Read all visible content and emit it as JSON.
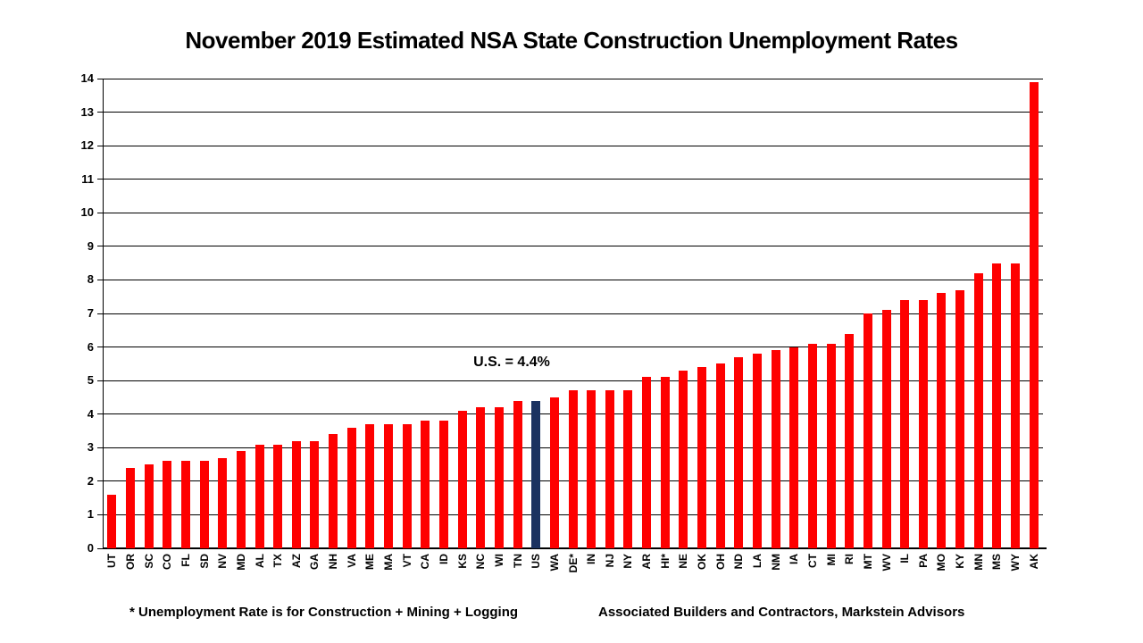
{
  "title": "November 2019 Estimated NSA State Construction Unemployment Rates",
  "annotation": "U.S. = 4.4%",
  "footnote_left": "* Unemployment Rate is for Construction + Mining + Logging",
  "footnote_right": "Associated Builders and Contractors, Markstein Advisors",
  "colors": {
    "bar": "#fe0000",
    "highlight_bar": "#1b3260",
    "grid": "#000000",
    "text": "#000000",
    "background": "#ffffff"
  },
  "chart_data": {
    "type": "bar",
    "title": "November 2019 Estimated NSA State Construction Unemployment Rates",
    "categories": [
      "UT",
      "OR",
      "SC",
      "CO",
      "FL",
      "SD",
      "NV",
      "MD",
      "AL",
      "TX",
      "AZ",
      "GA",
      "NH",
      "VA",
      "ME",
      "MA",
      "VT",
      "CA",
      "ID",
      "KS",
      "NC",
      "WI",
      "TN",
      "US",
      "WA",
      "DE*",
      "IN",
      "NJ",
      "NY",
      "AR",
      "HI*",
      "NE",
      "OK",
      "OH",
      "ND",
      "LA",
      "NM",
      "IA",
      "CT",
      "MI",
      "RI",
      "MT",
      "WV",
      "IL",
      "PA",
      "MO",
      "KY",
      "MN",
      "MS",
      "WY",
      "AK"
    ],
    "values": [
      1.6,
      2.4,
      2.5,
      2.6,
      2.6,
      2.6,
      2.7,
      2.9,
      3.1,
      3.1,
      3.2,
      3.2,
      3.4,
      3.6,
      3.7,
      3.7,
      3.7,
      3.8,
      3.8,
      4.1,
      4.2,
      4.2,
      4.4,
      4.4,
      4.5,
      4.7,
      4.7,
      4.7,
      4.7,
      5.1,
      5.1,
      5.3,
      5.4,
      5.5,
      5.7,
      5.8,
      5.9,
      6.0,
      6.1,
      6.1,
      6.4,
      7.0,
      7.1,
      7.4,
      7.4,
      7.6,
      7.7,
      8.2,
      8.5,
      8.5,
      13.9
    ],
    "highlight_category": "US",
    "xlabel": "",
    "ylabel": "",
    "ylim": [
      0,
      14
    ],
    "ytick_step": 1,
    "grid": true,
    "legend": "none",
    "annotation": {
      "text": "U.S. = 4.4%",
      "target": "US"
    }
  }
}
